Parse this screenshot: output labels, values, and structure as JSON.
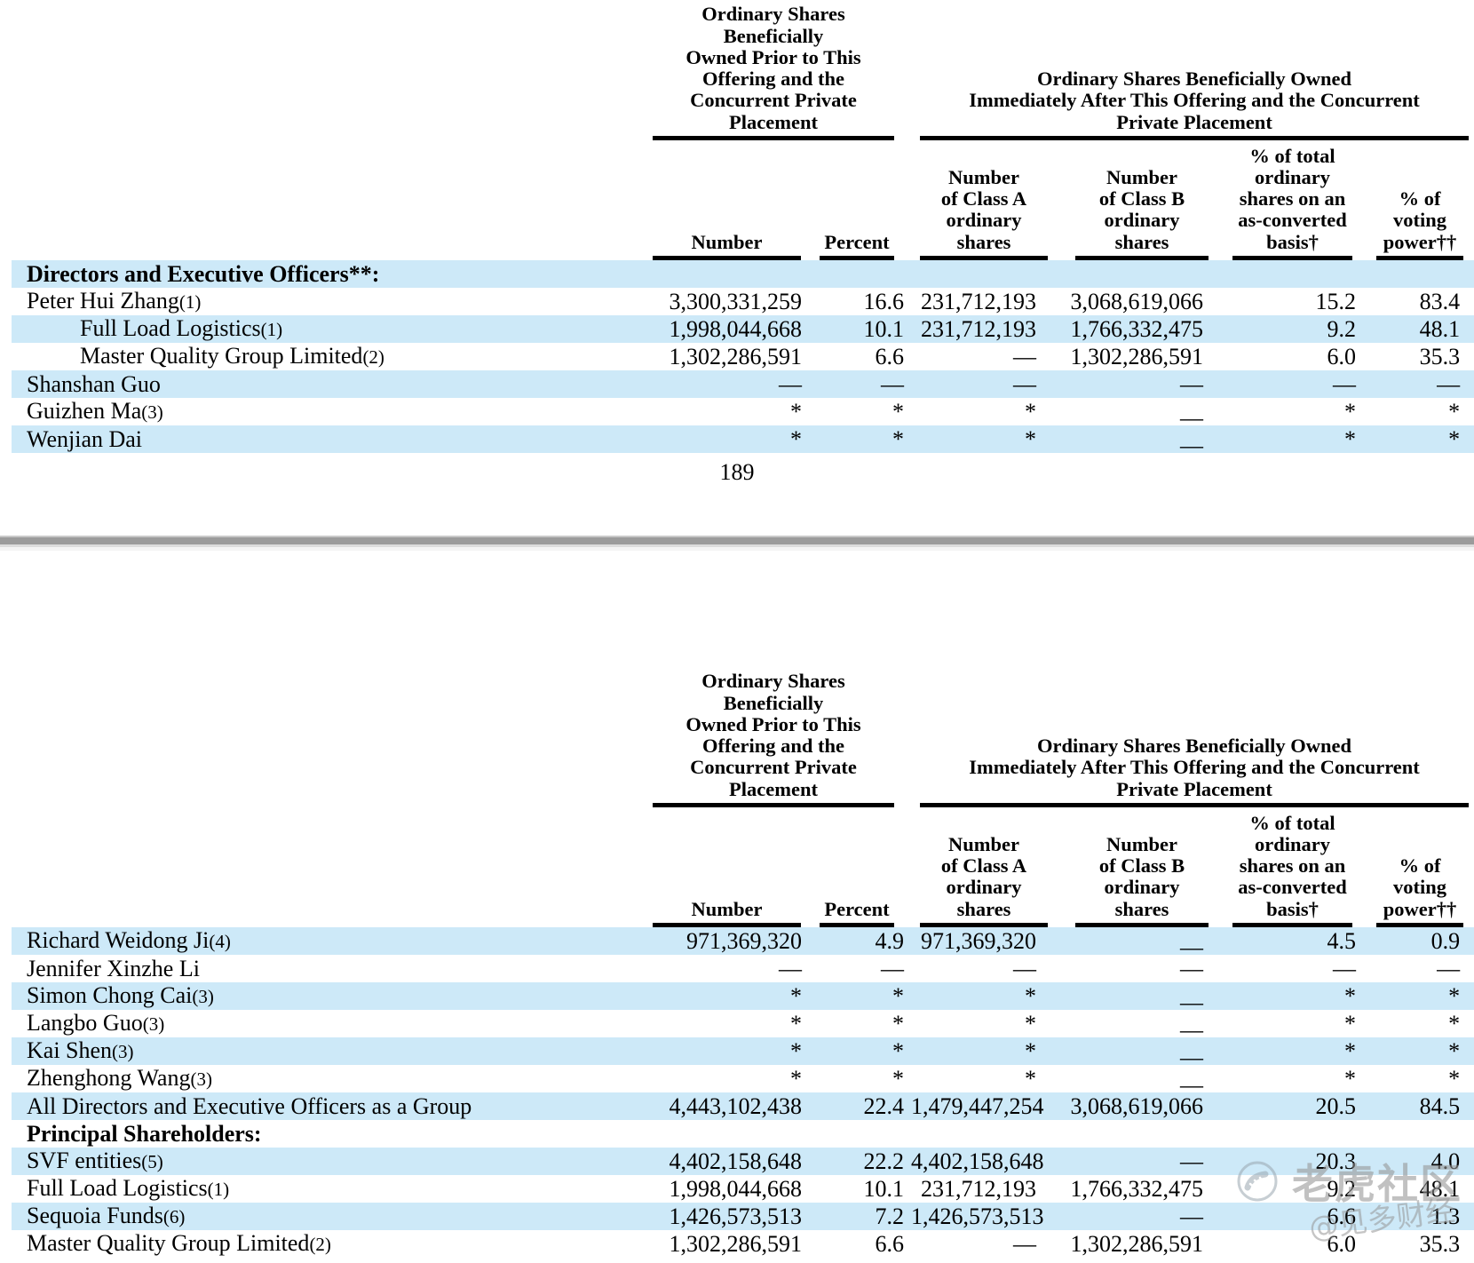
{
  "page_number": "189",
  "colors": {
    "highlight_blue": "#cde9f8",
    "divider_gray": "#9b9b9b",
    "watermark_gray": "#949494"
  },
  "table_header": {
    "group_prior": {
      "lines": [
        "Ordinary Shares",
        "Beneficially",
        "Owned Prior to This",
        "Offering and the",
        "Concurrent Private",
        "Placement"
      ]
    },
    "group_after": {
      "lines": [
        "Ordinary Shares Beneficially Owned",
        "Immediately After This Offering and the Concurrent",
        "Private Placement"
      ]
    },
    "columns": [
      {
        "id": "number",
        "lines": [
          "Number"
        ]
      },
      {
        "id": "percent",
        "lines": [
          "Percent"
        ]
      },
      {
        "id": "class_a",
        "lines": [
          "Number",
          "of Class A",
          "ordinary",
          "shares"
        ]
      },
      {
        "id": "class_b",
        "lines": [
          "Number",
          "of Class B",
          "ordinary",
          "shares"
        ]
      },
      {
        "id": "as_converted",
        "lines": [
          "% of total",
          "ordinary",
          "shares on an",
          "as-converted",
          "basis†"
        ]
      },
      {
        "id": "voting",
        "lines": [
          "% of",
          "voting",
          "power††"
        ]
      }
    ]
  },
  "table1": {
    "rows": [
      {
        "label": "Directors and Executive Officers**:",
        "ref": "",
        "bold": true,
        "indent": false,
        "hl": true,
        "values": [
          "",
          "",
          "",
          "",
          "",
          ""
        ],
        "low_dash": []
      },
      {
        "label": "Peter Hui Zhang",
        "ref": "(1)",
        "bold": false,
        "indent": false,
        "hl": false,
        "values": [
          "3,300,331,259",
          "16.6",
          "231,712,193",
          "3,068,619,066",
          "15.2",
          "83.4"
        ],
        "low_dash": []
      },
      {
        "label": "Full Load Logistics",
        "ref": "(1)",
        "bold": false,
        "indent": true,
        "hl": true,
        "values": [
          "1,998,044,668",
          "10.1",
          "231,712,193",
          "1,766,332,475",
          "9.2",
          "48.1"
        ],
        "low_dash": []
      },
      {
        "label": "Master Quality Group Limited",
        "ref": "(2)",
        "bold": false,
        "indent": true,
        "hl": false,
        "values": [
          "1,302,286,591",
          "6.6",
          "—",
          "1,302,286,591",
          "6.0",
          "35.3"
        ],
        "low_dash": []
      },
      {
        "label": "Shanshan Guo",
        "ref": "",
        "bold": false,
        "indent": false,
        "hl": true,
        "values": [
          "—",
          "—",
          "—",
          "—",
          "—",
          "—"
        ],
        "low_dash": []
      },
      {
        "label": "Guizhen Ma",
        "ref": "(3)",
        "bold": false,
        "indent": false,
        "hl": false,
        "values": [
          "*",
          "*",
          "*",
          "—",
          "*",
          "*"
        ],
        "low_dash": [
          3
        ]
      },
      {
        "label": "Wenjian Dai",
        "ref": "",
        "bold": false,
        "indent": false,
        "hl": true,
        "values": [
          "*",
          "*",
          "*",
          "—",
          "*",
          "*"
        ],
        "low_dash": [
          3
        ]
      }
    ]
  },
  "table2": {
    "rows": [
      {
        "label": "Richard Weidong Ji",
        "ref": "(4)",
        "bold": false,
        "indent": false,
        "hl": true,
        "values": [
          "971,369,320",
          "4.9",
          "971,369,320",
          "—",
          "4.5",
          "0.9"
        ],
        "low_dash": [
          3
        ]
      },
      {
        "label": "Jennifer Xinzhe Li",
        "ref": "",
        "bold": false,
        "indent": false,
        "hl": false,
        "values": [
          "—",
          "—",
          "—",
          "—",
          "—",
          "—"
        ],
        "low_dash": []
      },
      {
        "label": "Simon Chong Cai",
        "ref": "(3)",
        "bold": false,
        "indent": false,
        "hl": true,
        "values": [
          "*",
          "*",
          "*",
          "—",
          "*",
          "*"
        ],
        "low_dash": [
          3
        ]
      },
      {
        "label": "Langbo Guo",
        "ref": "(3)",
        "bold": false,
        "indent": false,
        "hl": false,
        "values": [
          "*",
          "*",
          "*",
          "—",
          "*",
          "*"
        ],
        "low_dash": [
          3
        ]
      },
      {
        "label": "Kai Shen",
        "ref": "(3)",
        "bold": false,
        "indent": false,
        "hl": true,
        "values": [
          "*",
          "*",
          "*",
          "—",
          "*",
          "*"
        ],
        "low_dash": [
          3
        ]
      },
      {
        "label": "Zhenghong Wang",
        "ref": "(3)",
        "bold": false,
        "indent": false,
        "hl": false,
        "values": [
          "*",
          "*",
          "*",
          "—",
          "*",
          "*"
        ],
        "low_dash": [
          3
        ]
      },
      {
        "label": "All Directors and Executive Officers as a Group",
        "ref": "",
        "bold": false,
        "indent": false,
        "hl": true,
        "values": [
          "4,443,102,438",
          "22.4",
          "1,479,447,254",
          "3,068,619,066",
          "20.5",
          "84.5"
        ],
        "low_dash": []
      },
      {
        "label": "Principal Shareholders:",
        "ref": "",
        "bold": true,
        "indent": false,
        "hl": false,
        "values": [
          "",
          "",
          "",
          "",
          "",
          ""
        ],
        "low_dash": []
      },
      {
        "label": "SVF entities",
        "ref": "(5)",
        "bold": false,
        "indent": false,
        "hl": true,
        "values": [
          "4,402,158,648",
          "22.2",
          "4,402,158,648",
          "—",
          "20.3",
          "4.0"
        ],
        "low_dash": []
      },
      {
        "label": "Full Load Logistics",
        "ref": "(1)",
        "bold": false,
        "indent": false,
        "hl": false,
        "values": [
          "1,998,044,668",
          "10.1",
          "231,712,193",
          "1,766,332,475",
          "9.2",
          "48.1"
        ],
        "low_dash": []
      },
      {
        "label": "Sequoia Funds",
        "ref": "(6)",
        "bold": false,
        "indent": false,
        "hl": true,
        "values": [
          "1,426,573,513",
          "7.2",
          "1,426,573,513",
          "—",
          "6.6",
          "1.3"
        ],
        "low_dash": []
      },
      {
        "label": "Master Quality Group Limited",
        "ref": "(2)",
        "bold": false,
        "indent": false,
        "hl": false,
        "values": [
          "1,302,286,591",
          "6.6",
          "—",
          "1,302,286,591",
          "6.0",
          "35.3"
        ],
        "low_dash": []
      }
    ]
  },
  "watermark": {
    "icon": "tiger-community-logo-icon",
    "brand": "老虎社区",
    "handle": "@见多财经"
  }
}
